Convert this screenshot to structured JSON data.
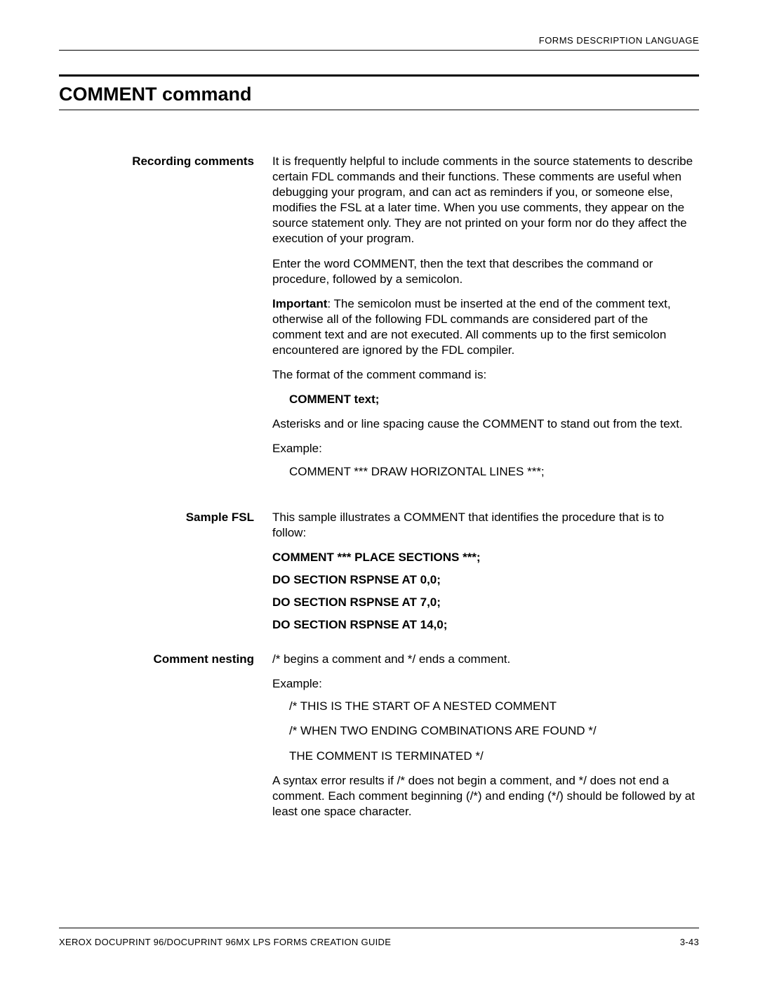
{
  "header": {
    "running": "FORMS DESCRIPTION LANGUAGE"
  },
  "title": "COMMENT command",
  "sections": {
    "recording": {
      "label": "Recording comments",
      "p1": "It is frequently helpful to include comments in the source statements to describe certain FDL commands and their functions. These comments are useful when debugging your program, and can act as reminders if you, or someone else, modifies the FSL at a later time. When you use comments, they appear on the source statement only. They are not printed on your form nor do they affect the execution of your program.",
      "p2": "Enter the word COMMENT, then the text that describes the command or procedure, followed by a semicolon.",
      "important_lead": "Important",
      "important_rest": ": The semicolon must be inserted at the end of the comment text, otherwise all of the following FDL commands are considered part of the comment text and are not executed. All comments up to the first semicolon encountered are ignored by the FDL compiler.",
      "p4": "The format of the comment command is:",
      "syntax": "COMMENT text;",
      "p5": "Asterisks and or line spacing cause the COMMENT to stand out from the text.",
      "p6": "Example:",
      "example": "COMMENT *** DRAW HORIZONTAL LINES ***;"
    },
    "sample": {
      "label": "Sample FSL",
      "p1": "This sample illustrates a COMMENT that identifies the procedure that is to follow:",
      "l1": "COMMENT *** PLACE SECTIONS ***;",
      "l2": "DO SECTION RSPNSE AT 0,0;",
      "l3": "DO SECTION RSPNSE AT 7,0;",
      "l4": "DO SECTION RSPNSE AT 14,0;"
    },
    "nesting": {
      "label": "Comment nesting",
      "p1": "/* begins a comment and */ ends a comment.",
      "p2": "Example:",
      "l1": "/* THIS IS THE START OF A NESTED COMMENT",
      "l2": "/* WHEN TWO ENDING COMBINATIONS ARE FOUND */",
      "l3": "THE COMMENT IS TERMINATED */",
      "p3": "A syntax error results if /* does not begin a comment, and */ does not end a comment. Each comment beginning (/*) and ending (*/) should be followed by at least one space character."
    }
  },
  "footer": {
    "left": "XEROX DOCUPRINT 96/DOCUPRINT 96MX LPS FORMS CREATION GUIDE",
    "right": "3-43"
  }
}
